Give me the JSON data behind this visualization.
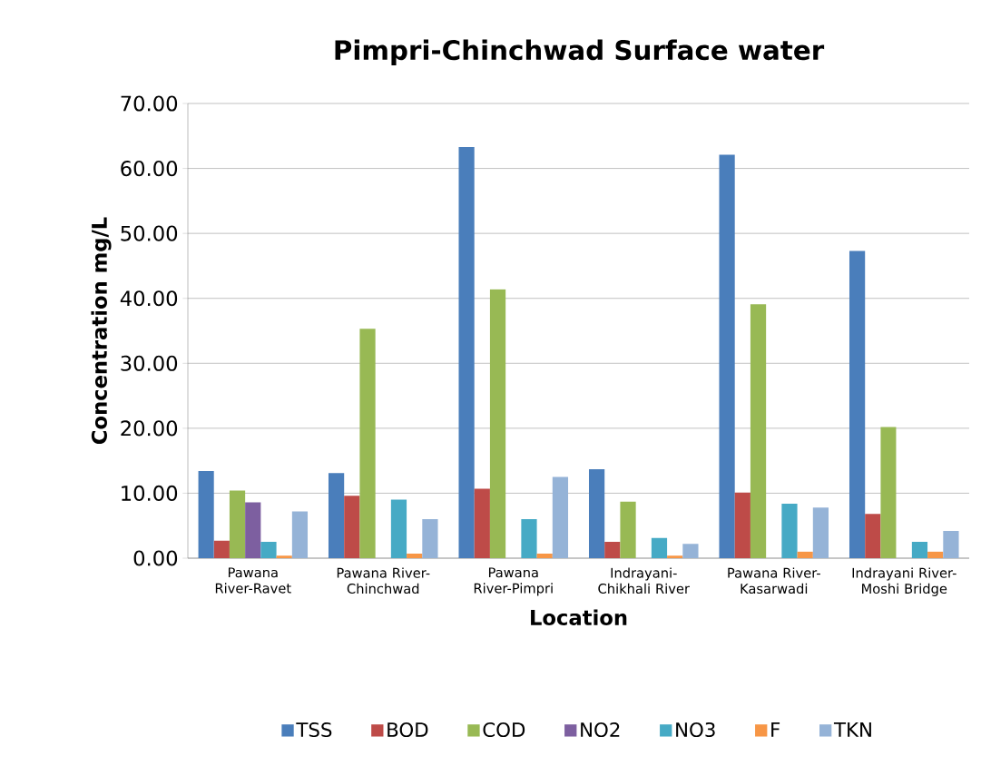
{
  "chart_data": {
    "type": "bar",
    "title": "Pimpri-Chinchwad Surface water",
    "xlabel": "Location",
    "ylabel": "Concentration  mg/L",
    "categories": [
      "Pawana River-Ravet",
      "Pawana River-Chinchwad",
      "Pawana River-Pimpri",
      "Indrayani-Chikhali River",
      "Pawana River-Kasarwadi",
      "Indrayani River-Moshi Bridge"
    ],
    "series": [
      {
        "name": "TSS",
        "color": "#4a7ebb",
        "values": [
          13.4,
          13.1,
          63.3,
          13.7,
          62.1,
          47.3
        ]
      },
      {
        "name": "BOD",
        "color": "#be4b48",
        "values": [
          2.7,
          9.6,
          10.7,
          2.5,
          10.1,
          6.8
        ]
      },
      {
        "name": "COD",
        "color": "#98b954",
        "values": [
          10.4,
          35.3,
          41.4,
          8.7,
          39.1,
          20.2
        ]
      },
      {
        "name": "NO2",
        "color": "#7d5fa0",
        "values": [
          8.6,
          0,
          0,
          0,
          0,
          0
        ]
      },
      {
        "name": "NO3",
        "color": "#46aac5",
        "values": [
          2.5,
          9.0,
          6.0,
          3.1,
          8.4,
          2.5
        ]
      },
      {
        "name": "F",
        "color": "#f79646",
        "values": [
          0.4,
          0.7,
          0.7,
          0.4,
          1.0,
          1.0
        ]
      },
      {
        "name": "TKN",
        "color": "#95b3d7",
        "values": [
          7.2,
          6.0,
          12.5,
          2.2,
          7.8,
          4.2
        ]
      }
    ],
    "ylim": [
      0,
      70
    ],
    "yticks": [
      {
        "value": 0,
        "label": "0.00"
      },
      {
        "value": 10,
        "label": "10.00"
      },
      {
        "value": 20,
        "label": "20.00"
      },
      {
        "value": 30,
        "label": "30.00"
      },
      {
        "value": 40,
        "label": "40.00"
      },
      {
        "value": 50,
        "label": "50.00"
      },
      {
        "value": 60,
        "label": "60.00"
      },
      {
        "value": 70,
        "label": "70.00"
      }
    ],
    "grid": "y",
    "legend": "bottom"
  }
}
